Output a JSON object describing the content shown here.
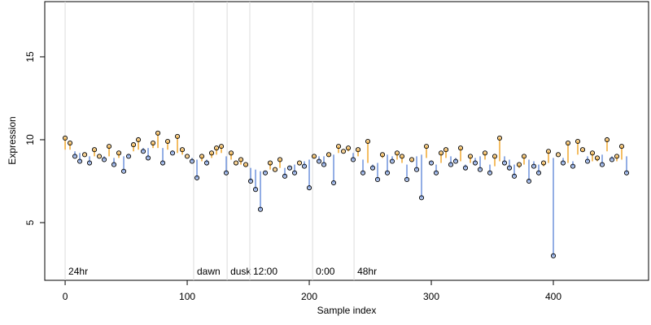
{
  "chart_data": {
    "type": "scatter",
    "x_label": "Sample index",
    "y_label": "Expression",
    "xlim": [
      -16.7,
      478
    ],
    "ylim": [
      1.52,
      18.33
    ],
    "xticks": [
      0,
      100,
      200,
      300,
      400
    ],
    "yticks": [
      5,
      10,
      15
    ],
    "above_color": "#f0a830",
    "below_color": "#6f93dc",
    "x": [
      0,
      4,
      8,
      12,
      16,
      20,
      24,
      28,
      32,
      36,
      40,
      44,
      48,
      52,
      56,
      60,
      64,
      68,
      72,
      76,
      80,
      84,
      88,
      92,
      96,
      100,
      104,
      108,
      112,
      116,
      120,
      124,
      128,
      132,
      136,
      140,
      144,
      148,
      152,
      156,
      160,
      164,
      168,
      172,
      176,
      180,
      184,
      188,
      192,
      196,
      200,
      204,
      208,
      212,
      216,
      220,
      224,
      228,
      232,
      236,
      240,
      244,
      248,
      252,
      256,
      260,
      264,
      268,
      272,
      276,
      280,
      284,
      288,
      292,
      296,
      300,
      304,
      308,
      312,
      316,
      320,
      324,
      328,
      332,
      336,
      340,
      344,
      348,
      352,
      356,
      360,
      364,
      368,
      372,
      376,
      380,
      384,
      388,
      392,
      396,
      400,
      404,
      408,
      412,
      416,
      420,
      424,
      428,
      432,
      436,
      440,
      444,
      448,
      452,
      456,
      460
    ],
    "values": [
      10.1,
      9.8,
      9.0,
      8.7,
      9.1,
      8.6,
      9.4,
      9.0,
      8.8,
      9.6,
      8.5,
      9.2,
      8.1,
      9.0,
      9.7,
      10.0,
      9.3,
      8.9,
      9.8,
      10.4,
      8.6,
      9.9,
      9.2,
      10.2,
      9.4,
      9.0,
      8.7,
      7.7,
      9.0,
      8.6,
      9.2,
      9.5,
      9.6,
      8.0,
      9.2,
      8.6,
      8.8,
      8.5,
      7.5,
      7.0,
      5.8,
      8.0,
      8.6,
      8.2,
      8.8,
      7.8,
      8.3,
      8.0,
      8.6,
      8.4,
      7.1,
      9.0,
      8.7,
      8.5,
      9.1,
      7.4,
      9.6,
      9.3,
      9.5,
      8.8,
      9.4,
      8.0,
      9.9,
      8.3,
      7.6,
      9.1,
      8.0,
      8.7,
      9.2,
      9.0,
      7.6,
      8.8,
      8.2,
      6.5,
      9.6,
      8.6,
      8.0,
      9.2,
      9.4,
      8.5,
      8.7,
      9.5,
      8.3,
      9.0,
      8.6,
      8.2,
      9.2,
      8.0,
      9.0,
      10.1,
      8.6,
      8.3,
      7.8,
      8.5,
      9.0,
      7.5,
      8.4,
      8.0,
      8.6,
      9.3,
      3.0,
      9.1,
      8.6,
      9.8,
      8.4,
      9.9,
      9.4,
      8.7,
      9.2,
      8.9,
      8.5,
      10.0,
      8.8,
      9.0,
      9.6,
      8.0
    ],
    "fitted": [
      9.4,
      9.4,
      9.3,
      9.2,
      9.1,
      9.0,
      9.0,
      9.0,
      9.0,
      9.0,
      8.9,
      8.9,
      9.0,
      9.1,
      9.3,
      9.4,
      9.5,
      9.5,
      9.5,
      9.5,
      9.5,
      9.4,
      9.3,
      9.2,
      9.1,
      9.0,
      8.9,
      8.8,
      8.7,
      8.8,
      8.9,
      9.1,
      9.2,
      9.0,
      8.8,
      8.6,
      8.5,
      8.4,
      8.3,
      8.2,
      8.1,
      8.1,
      8.2,
      8.2,
      8.3,
      8.3,
      8.4,
      8.5,
      8.6,
      8.7,
      8.8,
      8.9,
      9.0,
      9.0,
      9.0,
      9.1,
      9.2,
      9.3,
      9.3,
      9.2,
      9.0,
      8.8,
      8.6,
      8.5,
      8.6,
      8.9,
      9.1,
      9.0,
      8.8,
      8.6,
      8.5,
      8.7,
      9.0,
      9.1,
      8.9,
      8.7,
      8.5,
      8.6,
      8.9,
      9.0,
      8.9,
      8.7,
      8.5,
      8.6,
      8.9,
      9.0,
      8.8,
      8.5,
      8.4,
      8.7,
      9.0,
      8.8,
      8.5,
      8.3,
      8.5,
      8.8,
      8.7,
      8.5,
      8.4,
      8.6,
      8.9,
      9.1,
      8.9,
      8.6,
      8.7,
      9.1,
      9.3,
      9.0,
      8.7,
      8.7,
      9.1,
      9.3,
      9.0,
      8.7,
      8.8,
      9.0
    ],
    "annotations": [
      {
        "x": 0,
        "label": "24hr"
      },
      {
        "x": 105.3,
        "label": "dawn"
      },
      {
        "x": 132.7,
        "label": "dusk"
      },
      {
        "x": 151.3,
        "label": "12:00"
      },
      {
        "x": 202.7,
        "label": "0:00"
      },
      {
        "x": 236.7,
        "label": "48hr"
      }
    ]
  }
}
